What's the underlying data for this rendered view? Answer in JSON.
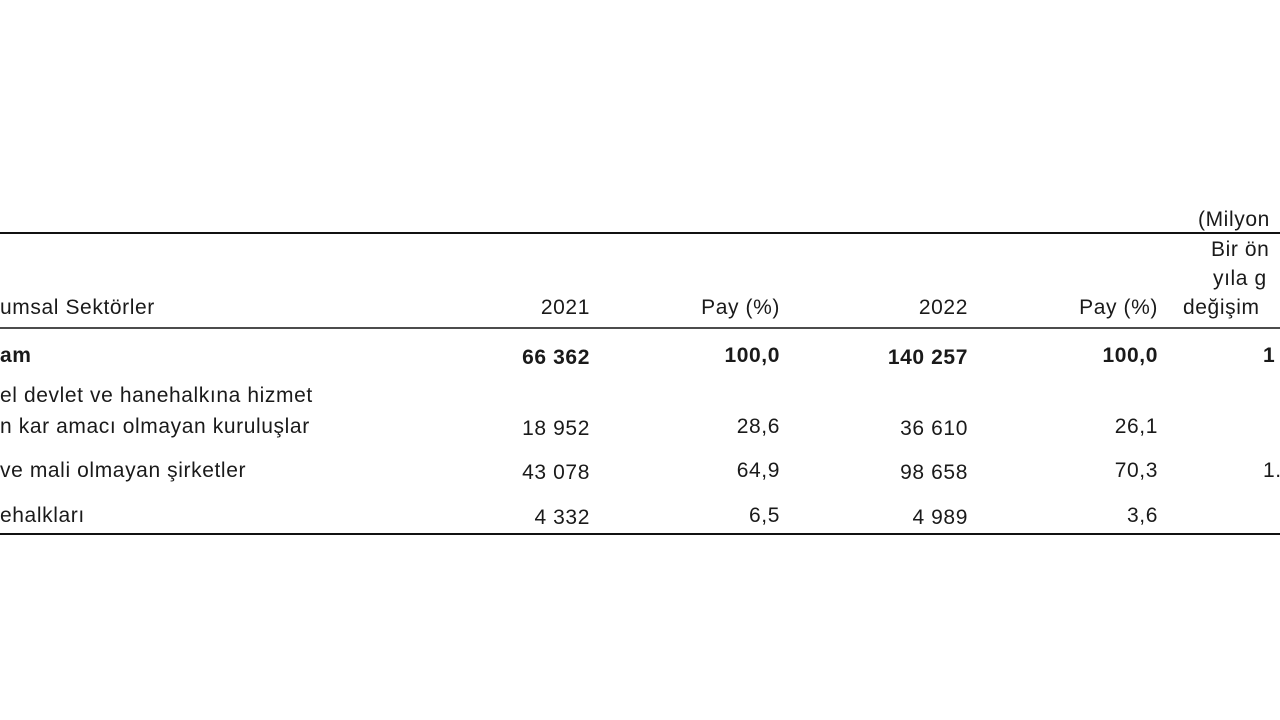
{
  "table": {
    "unit": "(Milyon",
    "header": {
      "label": "umsal Sektörler",
      "cols": [
        "2021",
        "Pay (%)",
        "2022",
        "Pay (%)"
      ],
      "change": [
        "Bir ön",
        "yıla g",
        "değişim"
      ]
    },
    "rows": [
      {
        "label": [
          "am"
        ],
        "cells": [
          "66 362",
          "100,0",
          "140 257",
          "100,0"
        ],
        "change": "1",
        "bold": true
      },
      {
        "label": [
          "el devlet ve hanehalkına hizmet",
          "n kar amacı olmayan kuruluşlar"
        ],
        "cells": [
          "18 952",
          "28,6",
          "36 610",
          "26,1"
        ]
      },
      {
        "label": [
          "ve mali olmayan şirketler"
        ],
        "cells": [
          "43 078",
          "64,9",
          "98 658",
          "70,3"
        ],
        "change": "1."
      },
      {
        "label": [
          "ehalkları"
        ],
        "cells": [
          "4 332",
          "6,5",
          "4 989",
          "3,6"
        ]
      }
    ]
  }
}
